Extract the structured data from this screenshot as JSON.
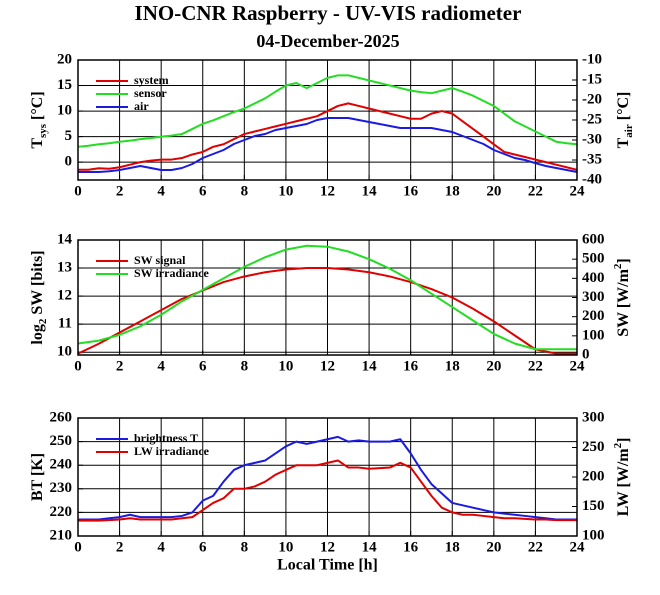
{
  "title": "INO-CNR Raspberry - UV-VIS radiometer",
  "subtitle": "04-December-2025",
  "chart_data": [
    {
      "type": "line",
      "ylabel": [
        {
          "t": "T"
        },
        {
          "t": "sys",
          "shift": "sub"
        },
        {
          "t": " [°C]"
        }
      ],
      "y2label": [
        {
          "t": "T"
        },
        {
          "t": "air",
          "shift": "sub"
        },
        {
          "t": " [°C]"
        }
      ],
      "xlim": [
        0,
        24
      ],
      "xticks": [
        0,
        2,
        4,
        6,
        8,
        10,
        12,
        14,
        16,
        18,
        20,
        22,
        24
      ],
      "ylim": [
        -3.5,
        20
      ],
      "yticks": [
        0,
        5,
        10,
        15,
        20
      ],
      "y2lim": [
        -40,
        -10
      ],
      "y2ticks": [
        -40,
        -35,
        -30,
        -25,
        -20,
        -15,
        -10
      ],
      "grid": true,
      "legend": "upper-left",
      "x": [
        0,
        0.5,
        1,
        1.5,
        2,
        2.5,
        3,
        3.5,
        4,
        4.5,
        5,
        5.5,
        6,
        6.5,
        7,
        7.5,
        8,
        8.5,
        9,
        9.5,
        10,
        10.5,
        11,
        11.5,
        12,
        12.5,
        13,
        13.5,
        14,
        14.5,
        15,
        15.5,
        16,
        16.5,
        17,
        17.5,
        18,
        18.5,
        19,
        19.5,
        20,
        20.5,
        21,
        21.5,
        22,
        22.5,
        23,
        23.5,
        24
      ],
      "series": [
        {
          "name": "system",
          "color": "#e00000",
          "axis": "y",
          "values": [
            -1.5,
            -1.5,
            -1.2,
            -1.3,
            -1.0,
            -0.5,
            0.0,
            0.3,
            0.5,
            0.5,
            0.8,
            1.5,
            2.0,
            3.0,
            3.5,
            4.5,
            5.5,
            6.0,
            6.5,
            7.0,
            7.5,
            8.0,
            8.5,
            9.0,
            10.0,
            11.0,
            11.5,
            11.0,
            10.5,
            10.0,
            9.5,
            9.0,
            8.5,
            8.5,
            9.5,
            10.0,
            9.5,
            8.0,
            6.5,
            5.0,
            3.5,
            2.0,
            1.5,
            1.0,
            0.5,
            0.0,
            -0.5,
            -1.0,
            -1.5
          ]
        },
        {
          "name": "sensor",
          "color": "#22dd22",
          "axis": "y",
          "values": [
            3.0,
            3.2,
            3.5,
            3.7,
            4.0,
            4.2,
            4.5,
            4.7,
            5.0,
            5.2,
            5.5,
            6.5,
            7.5,
            8.2,
            9.0,
            9.8,
            10.5,
            11.5,
            12.5,
            13.8,
            15.0,
            15.5,
            14.5,
            15.5,
            16.5,
            17.0,
            17.0,
            16.5,
            16.0,
            15.5,
            15.0,
            14.5,
            14.0,
            13.7,
            13.5,
            14.0,
            14.5,
            13.8,
            13.0,
            12.0,
            11.0,
            9.5,
            8.0,
            7.0,
            6.0,
            5.0,
            4.0,
            3.7,
            3.5
          ]
        },
        {
          "name": "air",
          "color": "#1a1ae0",
          "axis": "y2",
          "values": [
            -38,
            -38,
            -38,
            -37.8,
            -37.5,
            -37,
            -36.5,
            -37,
            -37.5,
            -37.5,
            -37,
            -36,
            -34.5,
            -33.5,
            -32.5,
            -31,
            -30,
            -29,
            -28.5,
            -27.5,
            -27,
            -26.5,
            -26,
            -25,
            -24.5,
            -24.5,
            -24.5,
            -25,
            -25.5,
            -26,
            -26.5,
            -27,
            -27,
            -27,
            -27,
            -27.5,
            -28,
            -29,
            -30,
            -31,
            -32.5,
            -33.5,
            -34.5,
            -35,
            -35.8,
            -36.5,
            -37,
            -37.5,
            -38
          ]
        }
      ]
    },
    {
      "type": "line",
      "ylabel": [
        {
          "t": "log"
        },
        {
          "t": "2",
          "shift": "sub"
        },
        {
          "t": " SW [bits]"
        }
      ],
      "y2label": [
        {
          "t": "SW [W/m"
        },
        {
          "t": "2",
          "shift": "sup"
        },
        {
          "t": "]"
        }
      ],
      "xlim": [
        0,
        24
      ],
      "xticks": [
        0,
        2,
        4,
        6,
        8,
        10,
        12,
        14,
        16,
        18,
        20,
        22,
        24
      ],
      "ylim": [
        9.9,
        14
      ],
      "yticks": [
        10,
        11,
        12,
        13,
        14
      ],
      "y2lim": [
        0,
        600
      ],
      "y2ticks": [
        0,
        100,
        200,
        300,
        400,
        500,
        600
      ],
      "grid": true,
      "legend": "upper-left",
      "x": [
        0,
        1,
        2,
        3,
        4,
        5,
        6,
        7,
        8,
        9,
        10,
        11,
        12,
        13,
        14,
        15,
        16,
        17,
        18,
        19,
        20,
        21,
        22,
        23,
        24
      ],
      "series": [
        {
          "name": "SW signal",
          "color": "#e00000",
          "axis": "y",
          "values": [
            9.95,
            10.3,
            10.7,
            11.1,
            11.5,
            11.9,
            12.2,
            12.5,
            12.7,
            12.85,
            12.95,
            13.0,
            13.0,
            12.95,
            12.85,
            12.7,
            12.5,
            12.25,
            11.95,
            11.55,
            11.1,
            10.6,
            10.1,
            9.95,
            9.95
          ]
        },
        {
          "name": "SW irradiance",
          "color": "#22dd22",
          "axis": "y2",
          "values": [
            60,
            75,
            105,
            150,
            210,
            280,
            340,
            400,
            460,
            510,
            550,
            570,
            565,
            540,
            500,
            450,
            390,
            320,
            250,
            180,
            110,
            60,
            30,
            30,
            30
          ]
        }
      ]
    },
    {
      "type": "line",
      "ylabel": [
        {
          "t": "BT [K]"
        }
      ],
      "y2label": [
        {
          "t": "LW [W/m"
        },
        {
          "t": "2",
          "shift": "sup"
        },
        {
          "t": "]"
        }
      ],
      "xlabel": "Local Time [h]",
      "xlim": [
        0,
        24
      ],
      "xticks": [
        0,
        2,
        4,
        6,
        8,
        10,
        12,
        14,
        16,
        18,
        20,
        22,
        24
      ],
      "ylim": [
        210,
        260
      ],
      "yticks": [
        210,
        220,
        230,
        240,
        250,
        260
      ],
      "y2lim": [
        100,
        300
      ],
      "y2ticks": [
        100,
        150,
        200,
        250,
        300
      ],
      "grid": true,
      "legend": "upper-left",
      "x": [
        0,
        0.5,
        1,
        1.5,
        2,
        2.5,
        3,
        3.5,
        4,
        4.5,
        5,
        5.5,
        6,
        6.5,
        7,
        7.5,
        8,
        8.5,
        9,
        9.5,
        10,
        10.5,
        11,
        11.5,
        12,
        12.5,
        13,
        13.5,
        14,
        14.5,
        15,
        15.5,
        16,
        16.5,
        17,
        17.5,
        18,
        18.5,
        19,
        19.5,
        20,
        20.5,
        21,
        21.5,
        22,
        22.5,
        23,
        23.5,
        24
      ],
      "series": [
        {
          "name": "brightness T",
          "color": "#1a1ae0",
          "axis": "y",
          "values": [
            217,
            217,
            217,
            217.5,
            218,
            219,
            218,
            218,
            218,
            218,
            218.5,
            220,
            225,
            227,
            233,
            238,
            240,
            241,
            242,
            245,
            248,
            250,
            249,
            250,
            251,
            252,
            250,
            250.5,
            250,
            250,
            250,
            251,
            245,
            238,
            232,
            228,
            224,
            223,
            222,
            221,
            220,
            219.5,
            219,
            218.5,
            218,
            217.5,
            217,
            217,
            217
          ]
        },
        {
          "name": "LW irradiance",
          "color": "#e00000",
          "axis": "y2",
          "values": [
            126,
            126,
            126,
            127,
            128,
            130,
            128,
            128,
            128,
            128,
            130,
            132,
            144,
            156,
            164,
            180,
            180,
            184,
            192,
            204,
            212,
            220,
            220,
            220,
            224,
            228,
            216,
            216,
            214,
            215,
            216,
            224,
            216,
            192,
            168,
            148,
            140,
            136,
            136,
            134,
            132,
            130,
            130,
            129,
            128,
            128,
            127,
            127,
            127
          ]
        }
      ]
    }
  ]
}
